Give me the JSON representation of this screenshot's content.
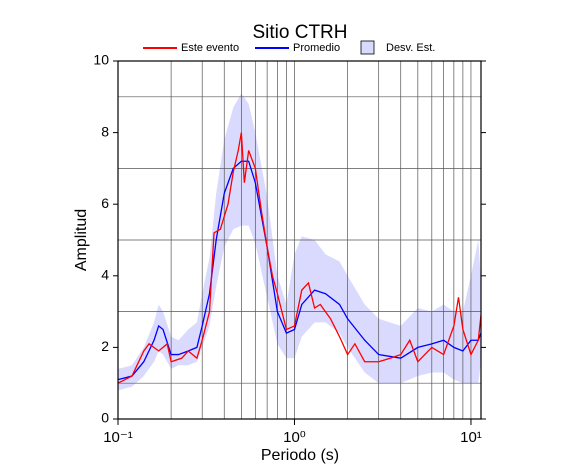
{
  "chart_data": {
    "type": "line",
    "title": "Sitio CTRH",
    "xlabel": "Periodo (s)",
    "ylabel": "Amplitud",
    "xscale": "log",
    "xlim": [
      0.1,
      11.4
    ],
    "ylim": [
      0,
      10
    ],
    "xticks": [
      {
        "value": 0.1,
        "label": "10⁻¹"
      },
      {
        "value": 1,
        "label": "10⁰"
      },
      {
        "value": 10,
        "label": "10¹"
      }
    ],
    "xminor": [
      0.2,
      0.3,
      0.4,
      0.5,
      0.6,
      0.7,
      0.8,
      0.9,
      2,
      3,
      4,
      5,
      6,
      7,
      8,
      9
    ],
    "yticks": [
      0,
      2,
      4,
      6,
      8,
      10
    ],
    "yminor": [
      1,
      3,
      5,
      7,
      9
    ],
    "grid": true,
    "legend": "top",
    "series": [
      {
        "name": "Este evento",
        "color": "#ff0000",
        "x": [
          0.1,
          0.12,
          0.14,
          0.15,
          0.17,
          0.19,
          0.2,
          0.23,
          0.25,
          0.28,
          0.3,
          0.33,
          0.35,
          0.38,
          0.42,
          0.45,
          0.48,
          0.5,
          0.52,
          0.55,
          0.6,
          0.65,
          0.7,
          0.75,
          0.8,
          0.9,
          1.0,
          1.1,
          1.2,
          1.3,
          1.4,
          1.6,
          1.8,
          2,
          2.2,
          2.5,
          3,
          3.5,
          4,
          4.5,
          5,
          6,
          7,
          8,
          8.5,
          9,
          10,
          11,
          11.4
        ],
        "values": [
          1.0,
          1.2,
          1.9,
          2.1,
          1.9,
          2.1,
          1.6,
          1.7,
          1.9,
          1.7,
          2.2,
          3.0,
          5.2,
          5.3,
          6.0,
          6.9,
          7.5,
          8.0,
          6.6,
          7.5,
          7.0,
          5.8,
          4.8,
          4.0,
          3.5,
          2.5,
          2.6,
          3.6,
          3.8,
          3.1,
          3.2,
          2.8,
          2.3,
          1.8,
          2.1,
          1.6,
          1.6,
          1.7,
          1.8,
          2.2,
          1.6,
          2.0,
          1.8,
          2.6,
          3.4,
          2.5,
          1.8,
          2.2,
          2.9
        ]
      },
      {
        "name": "Promedio",
        "color": "#0000ff",
        "x": [
          0.1,
          0.12,
          0.14,
          0.16,
          0.17,
          0.18,
          0.2,
          0.22,
          0.25,
          0.28,
          0.3,
          0.33,
          0.36,
          0.4,
          0.45,
          0.5,
          0.55,
          0.6,
          0.7,
          0.8,
          0.9,
          1.0,
          1.1,
          1.3,
          1.5,
          1.8,
          2.0,
          2.5,
          3,
          4,
          5,
          6,
          7,
          8,
          9,
          10,
          11,
          11.4
        ],
        "values": [
          1.1,
          1.2,
          1.6,
          2.2,
          2.6,
          2.5,
          1.8,
          1.8,
          1.9,
          2.0,
          2.6,
          3.5,
          5.0,
          6.3,
          7.0,
          7.2,
          7.2,
          6.6,
          4.8,
          3.0,
          2.4,
          2.5,
          3.2,
          3.6,
          3.5,
          3.2,
          2.8,
          2.2,
          1.8,
          1.7,
          2.0,
          2.1,
          2.2,
          2.0,
          1.9,
          2.2,
          2.2,
          2.4
        ]
      },
      {
        "name": "Desv. Est.",
        "color": "#dadaff",
        "x": [
          0.1,
          0.12,
          0.14,
          0.16,
          0.17,
          0.18,
          0.2,
          0.22,
          0.25,
          0.28,
          0.3,
          0.33,
          0.36,
          0.4,
          0.45,
          0.5,
          0.55,
          0.6,
          0.7,
          0.8,
          0.9,
          1.0,
          1.1,
          1.3,
          1.5,
          1.8,
          2.0,
          2.5,
          3,
          4,
          5,
          6,
          7,
          8,
          9,
          10,
          11,
          11.4
        ],
        "upper": [
          1.4,
          1.5,
          2.0,
          2.7,
          3.2,
          3.0,
          2.3,
          2.2,
          2.5,
          2.7,
          3.5,
          4.5,
          6.3,
          7.8,
          8.7,
          9.1,
          8.8,
          8.0,
          6.2,
          4.0,
          3.2,
          4.6,
          5.1,
          5.0,
          4.6,
          4.4,
          4.0,
          3.2,
          2.8,
          2.6,
          3.1,
          3.0,
          3.2,
          3.0,
          3.0,
          4.0,
          5.0,
          3.8
        ],
        "lower": [
          0.8,
          0.9,
          1.2,
          1.6,
          1.9,
          1.8,
          1.4,
          1.5,
          1.5,
          1.6,
          2.0,
          2.6,
          3.7,
          4.8,
          5.3,
          5.4,
          5.4,
          4.9,
          3.4,
          2.1,
          1.7,
          1.7,
          2.3,
          2.7,
          2.7,
          2.4,
          2.0,
          1.3,
          1.0,
          1.0,
          1.2,
          1.3,
          1.3,
          1.1,
          1.0,
          1.0,
          1.0,
          1.6
        ]
      }
    ]
  }
}
